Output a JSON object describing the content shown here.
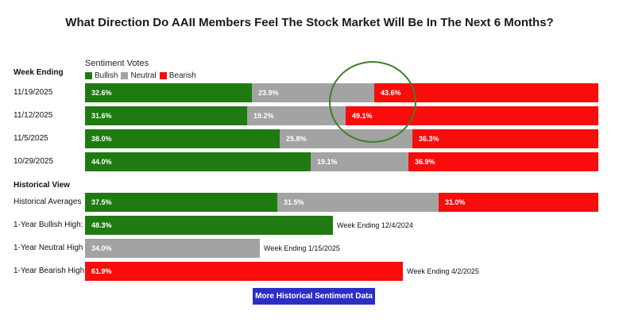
{
  "title": "What Direction Do AAII Members Feel The Stock Market Will Be In The Next 6 Months?",
  "legend_title": "Sentiment Votes",
  "row_header": "Week Ending",
  "legend": [
    {
      "name": "Bullish",
      "color": "#1f7a12"
    },
    {
      "name": "Neutral",
      "color": "#a3a3a3"
    },
    {
      "name": "Bearish",
      "color": "#f80c0c"
    }
  ],
  "historical_header": "Historical View",
  "button_label": "More Historical Sentiment Data",
  "chart_data": {
    "type": "bar",
    "stacked": true,
    "orientation": "horizontal",
    "series_order": [
      "Bullish",
      "Neutral",
      "Bearish"
    ],
    "weekly": [
      {
        "label": "11/19/2025",
        "values": [
          32.6,
          23.9,
          43.6
        ],
        "display": [
          "32.6%",
          "23.9%",
          "43.6%"
        ]
      },
      {
        "label": "11/12/2025",
        "values": [
          31.6,
          19.2,
          49.1
        ],
        "display": [
          "31.6%",
          "19.2%",
          "49.1%"
        ]
      },
      {
        "label": "11/5/2025",
        "values": [
          38.0,
          25.8,
          36.3
        ],
        "display": [
          "38.0%",
          "25.8%",
          "36.3%"
        ]
      },
      {
        "label": "10/29/2025",
        "values": [
          44.0,
          19.1,
          36.9
        ],
        "display": [
          "44.0%",
          "19.1%",
          "36.9%"
        ]
      }
    ],
    "historical": [
      {
        "label": "Historical Averages",
        "values": [
          37.5,
          31.5,
          31.0
        ],
        "display": [
          "37.5%",
          "31.5%",
          "31.0%"
        ]
      }
    ],
    "highs": [
      {
        "label": "1-Year Bullish High:",
        "series": "Bullish",
        "value": 48.3,
        "display": "48.3%",
        "note": "Week Ending 12/4/2024"
      },
      {
        "label": "1-Year Neutral High",
        "series": "Neutral",
        "value": 34.0,
        "display": "34.0%",
        "note": "Week Ending 1/15/2025"
      },
      {
        "label": "1-Year Bearish High",
        "series": "Bearish",
        "value": 61.9,
        "display": "61.9%",
        "note": "Week Ending 4/2/2025"
      }
    ]
  }
}
